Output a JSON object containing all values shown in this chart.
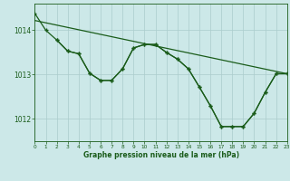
{
  "background_color": "#cce8e8",
  "grid_color": "#aacccc",
  "line_color": "#1a5c1a",
  "xlabel": "Graphe pression niveau de la mer (hPa)",
  "xlim": [
    0,
    23
  ],
  "ylim": [
    1011.5,
    1014.6
  ],
  "yticks": [
    1012,
    1013,
    1014
  ],
  "xticks": [
    0,
    1,
    2,
    3,
    4,
    5,
    6,
    7,
    8,
    9,
    10,
    11,
    12,
    13,
    14,
    15,
    16,
    17,
    18,
    19,
    20,
    21,
    22,
    23
  ],
  "line_diagonal": {
    "x": [
      0,
      23
    ],
    "y": [
      1014.22,
      1013.02
    ]
  },
  "line_a": {
    "x": [
      0,
      1,
      2,
      3,
      4,
      5,
      6,
      7,
      8,
      9,
      10,
      11,
      12,
      13,
      14,
      15,
      16,
      17,
      18,
      19,
      20,
      21,
      22,
      23
    ],
    "y": [
      1014.38,
      1014.0,
      1013.78,
      1013.53,
      1013.47,
      1013.03,
      1012.87,
      1012.87,
      1013.13,
      1013.6,
      1013.68,
      1013.68,
      1013.5,
      1013.35,
      1013.13,
      1012.72,
      1012.3,
      1011.83,
      1011.83,
      1011.83,
      1012.13,
      1012.6,
      1013.02,
      1013.02
    ]
  },
  "line_b": {
    "x": [
      2,
      3,
      4,
      5,
      6,
      7,
      8,
      9,
      10,
      11,
      12,
      13,
      14,
      15,
      16,
      17,
      18,
      19,
      20,
      21,
      22,
      23
    ],
    "y": [
      1013.78,
      1013.53,
      1013.47,
      1013.03,
      1012.87,
      1012.87,
      1013.13,
      1013.6,
      1013.68,
      1013.68,
      1013.5,
      1013.35,
      1013.13,
      1012.72,
      1012.3,
      1011.83,
      1011.83,
      1011.83,
      1012.13,
      1012.6,
      1013.02,
      1013.02
    ]
  }
}
